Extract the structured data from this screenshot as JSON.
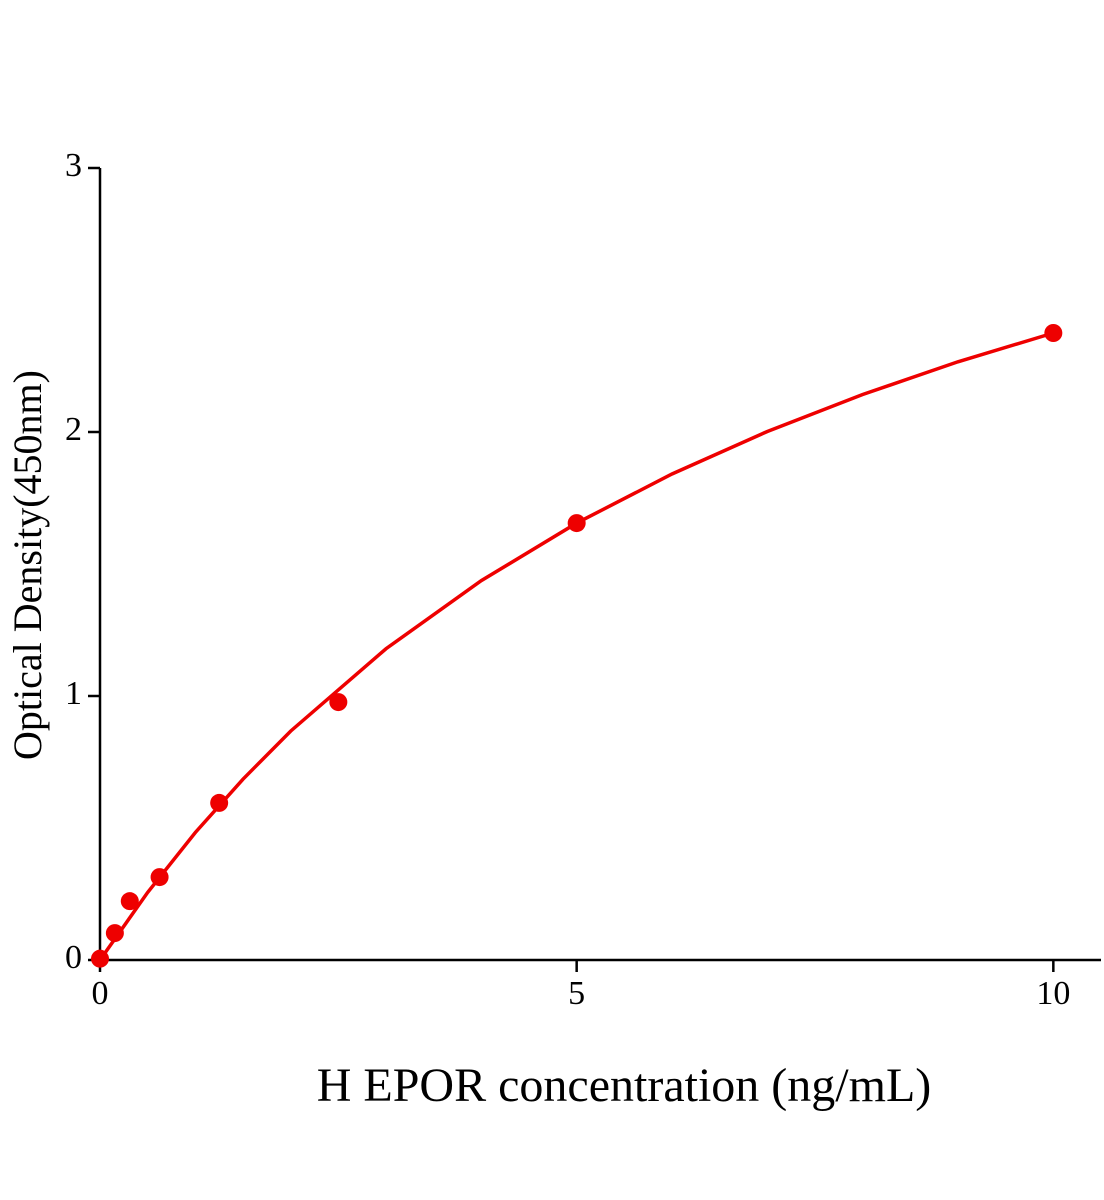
{
  "chart_data": {
    "type": "scatter",
    "x_label": "H EPOR concentration (ng/mL)",
    "y_label": "Optical Density(450nm)",
    "xlim": [
      0,
      10.5
    ],
    "xticks": [
      0,
      5,
      10
    ],
    "ylim": [
      0,
      3
    ],
    "yticks": [
      0,
      1,
      2,
      3
    ],
    "series": [
      {
        "type": "scatter",
        "color": "#ee0000",
        "x": [
          0,
          0.156,
          0.3125,
          0.625,
          1.25,
          2.5,
          5,
          10
        ],
        "values": [
          0.005,
          0.102,
          0.223,
          0.314,
          0.595,
          0.977,
          1.655,
          2.375
        ]
      },
      {
        "type": "line",
        "color": "#ee0000",
        "x": [
          0,
          0.5,
          1,
          1.5,
          2,
          3,
          4,
          5,
          6,
          7,
          8,
          9,
          10
        ],
        "values": [
          0,
          0.256,
          0.483,
          0.685,
          0.867,
          1.179,
          1.437,
          1.655,
          1.841,
          2.002,
          2.142,
          2.266,
          2.375
        ]
      }
    ]
  }
}
